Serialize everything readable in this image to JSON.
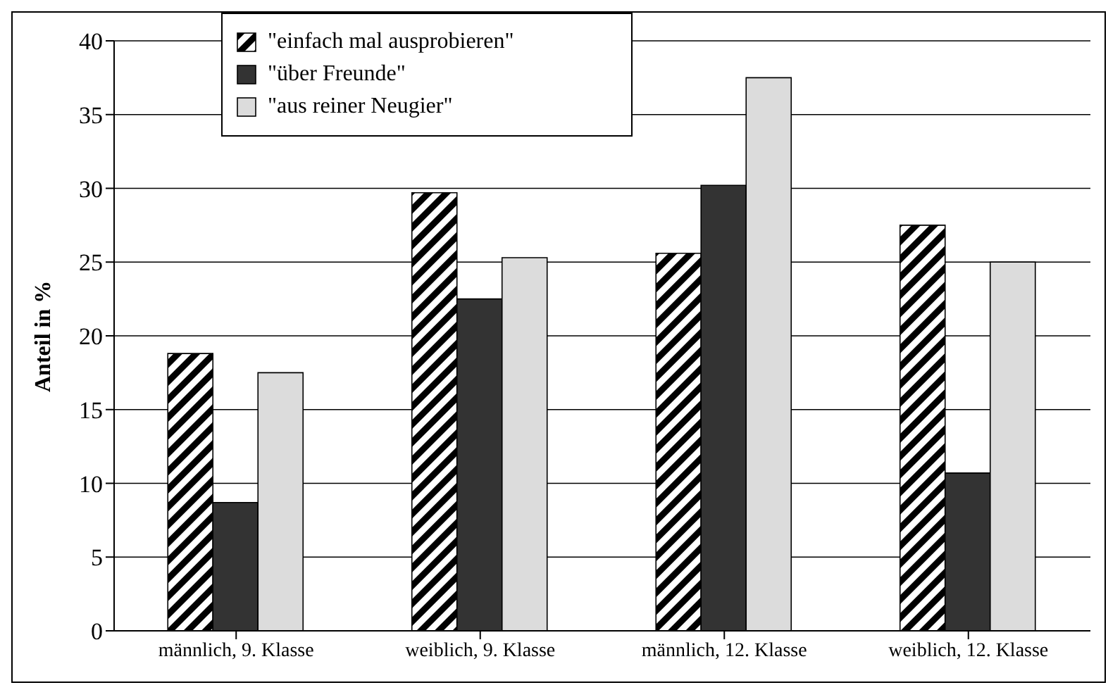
{
  "chart_data": {
    "type": "bar",
    "ylabel": "Anteil in %",
    "categories": [
      "männlich, 9. Klasse",
      "weiblich, 9. Klasse",
      "männlich, 12. Klasse",
      "weiblich, 12. Klasse"
    ],
    "series": [
      {
        "name": "\"einfach mal ausprobieren\"",
        "color": "#000000",
        "values": [
          18.8,
          29.7,
          25.6,
          27.5
        ]
      },
      {
        "name": "\"über Freunde\"",
        "color": "#333333",
        "values": [
          8.7,
          22.5,
          30.2,
          10.7
        ]
      },
      {
        "name": "\"aus reiner Neugier\"",
        "color": "#dcdcdc",
        "values": [
          17.5,
          25.3,
          37.5,
          25.0
        ]
      }
    ],
    "ylim": [
      0,
      40
    ],
    "yticks": [
      0,
      5,
      10,
      15,
      20,
      25,
      30,
      35,
      40
    ],
    "grid": "y",
    "legend": "top left"
  }
}
